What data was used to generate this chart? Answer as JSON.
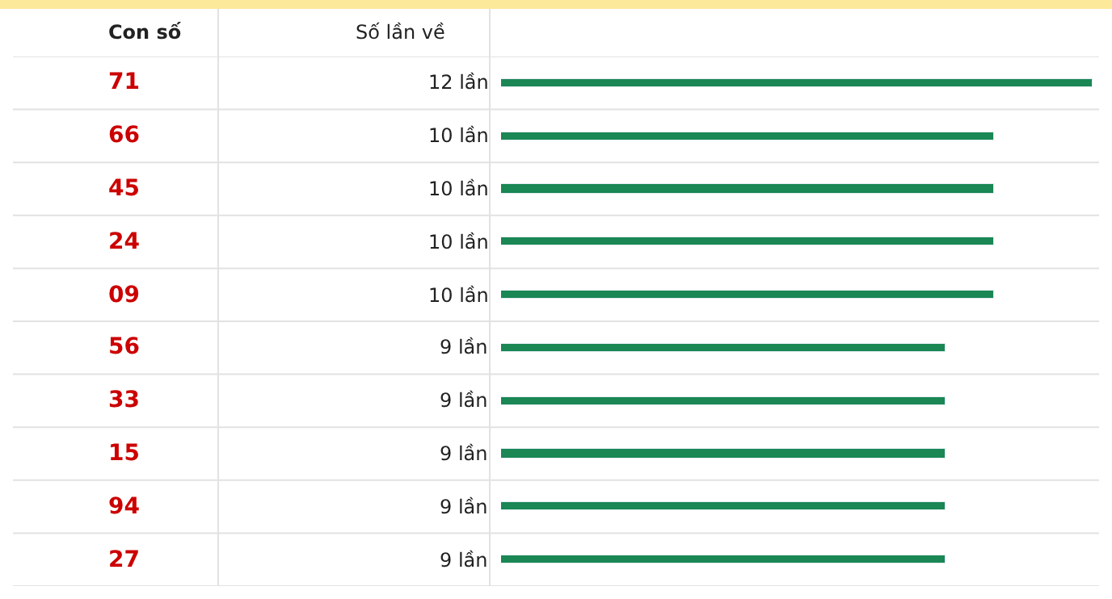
{
  "chart_data": {
    "type": "bar",
    "orientation": "horizontal",
    "annotations": [
      "Con số",
      "Số lần về"
    ],
    "categories": [
      "71",
      "66",
      "45",
      "24",
      "09",
      "56",
      "33",
      "15",
      "94",
      "27"
    ],
    "values": [
      12,
      10,
      10,
      10,
      10,
      9,
      9,
      9,
      9,
      9
    ],
    "value_labels": [
      "12 lần",
      "10 lần",
      "10 lần",
      "10 lần",
      "10 lần",
      "9 lần",
      "9 lần",
      "9 lần",
      "9 lần",
      "9 lần"
    ],
    "color": "#1a8754"
  }
}
